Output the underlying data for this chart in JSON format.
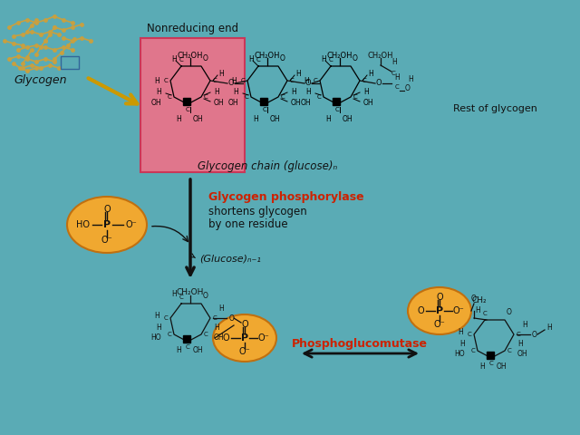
{
  "bg_color": "#5aabb5",
  "glycogen_label": "Glycogen",
  "nonreducing_label": "Nonreducing end",
  "glycogen_chain_label": "Glycogen chain (glucose)ₙ",
  "rest_of_glycogen": "Rest of glycogen",
  "phosphorylase_label": "Glycogen phosphorylase",
  "shortens_label": "shortens glycogen",
  "by_one_label": "by one residue",
  "glucose_n1_label": "(Glucose)ₙ₋₁",
  "phosphoglucomutase_label": "Phosphoglucomutase",
  "pink_box_color": "#e8748a",
  "orange_color": "#f0a830",
  "orange_edge": "#c07010",
  "red_text_color": "#cc2200",
  "black_text_color": "#111111"
}
